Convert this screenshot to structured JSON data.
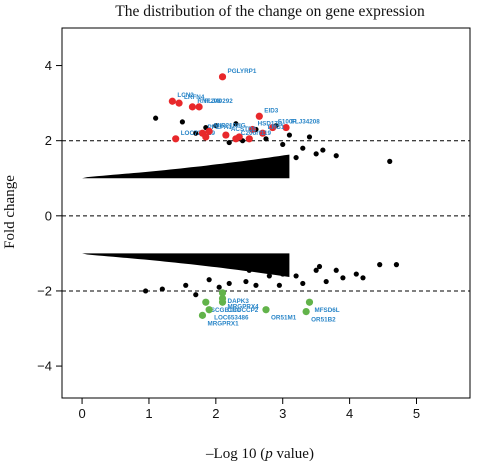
{
  "chart_data": {
    "type": "scatter",
    "title": "The distribution of the change on gene expression",
    "xlabel_prefix": "–Log 10 (",
    "xlabel_italic": "p",
    "xlabel_suffix": " value)",
    "ylabel": "Fold change",
    "xlim": [
      -0.3,
      5.8
    ],
    "ylim": [
      -4.85,
      5.0
    ],
    "x_ticks": [
      0,
      1,
      2,
      3,
      4,
      5
    ],
    "y_ticks": [
      -4,
      -2,
      0,
      2,
      4
    ],
    "reference_lines": [
      2,
      0,
      -2
    ],
    "colors": {
      "background": "#000000",
      "up": "#e8282b",
      "down": "#62b34a",
      "label": "#2a86c8"
    },
    "background_points": [
      [
        1.85,
        2.35
      ],
      [
        2.0,
        2.4
      ],
      [
        2.3,
        2.45
      ],
      [
        2.6,
        2.3
      ],
      [
        2.9,
        2.4
      ],
      [
        3.1,
        2.15
      ],
      [
        3.4,
        2.1
      ],
      [
        3.6,
        1.75
      ],
      [
        3.8,
        1.6
      ],
      [
        4.6,
        1.45
      ],
      [
        3.3,
        1.8
      ],
      [
        3.0,
        1.9
      ],
      [
        2.75,
        2.05
      ],
      [
        1.1,
        2.6
      ],
      [
        1.5,
        2.5
      ],
      [
        1.7,
        2.2
      ],
      [
        2.4,
        2.0
      ],
      [
        3.2,
        1.55
      ],
      [
        2.2,
        1.95
      ],
      [
        3.5,
        1.65
      ],
      [
        2.5,
        -1.45
      ],
      [
        2.8,
        -1.6
      ],
      [
        3.0,
        -1.55
      ],
      [
        3.2,
        -1.6
      ],
      [
        3.5,
        -1.45
      ],
      [
        3.8,
        -1.45
      ],
      [
        4.1,
        -1.55
      ],
      [
        4.45,
        -1.3
      ],
      [
        4.7,
        -1.3
      ],
      [
        3.9,
        -1.65
      ],
      [
        3.65,
        -1.75
      ],
      [
        1.9,
        -1.7
      ],
      [
        2.2,
        -1.8
      ],
      [
        1.2,
        -1.95
      ],
      [
        1.55,
        -1.85
      ],
      [
        2.6,
        -1.85
      ],
      [
        3.3,
        -1.8
      ],
      [
        1.7,
        -2.1
      ],
      [
        2.95,
        -1.85
      ],
      [
        3.55,
        -1.35
      ],
      [
        4.2,
        -1.65
      ],
      [
        0.95,
        -2.0
      ],
      [
        2.05,
        -1.9
      ],
      [
        2.45,
        -1.75
      ]
    ],
    "up_genes": [
      {
        "name": "PGLYRP1",
        "x": 2.1,
        "y": 3.7
      },
      {
        "name": "LCN2",
        "x": 1.35,
        "y": 3.05
      },
      {
        "name": "LRFN4",
        "x": 1.45,
        "y": 3.0
      },
      {
        "name": "RNF208",
        "x": 1.65,
        "y": 2.9
      },
      {
        "name": "FLJ40292",
        "x": 1.75,
        "y": 2.9
      },
      {
        "name": "EID3",
        "x": 2.65,
        "y": 2.65
      },
      {
        "name": "FLJ34208",
        "x": 3.05,
        "y": 2.35
      },
      {
        "name": "S100P",
        "x": 2.85,
        "y": 2.35
      },
      {
        "name": "HSD17B",
        "x": 2.55,
        "y": 2.3
      },
      {
        "name": "LRG1",
        "x": 2.7,
        "y": 2.2
      },
      {
        "name": "LOC728619",
        "x": 1.4,
        "y": 2.05
      },
      {
        "name": "PPEPA1",
        "x": 1.8,
        "y": 2.2
      },
      {
        "name": "MIR210HG",
        "x": 1.9,
        "y": 2.25
      },
      {
        "name": "ACSTD2",
        "x": 2.15,
        "y": 2.15
      },
      {
        "name": "C20orf119",
        "x": 2.3,
        "y": 2.05
      },
      {
        "name": "",
        "x": 1.85,
        "y": 2.1
      },
      {
        "name": "",
        "x": 2.35,
        "y": 2.1
      },
      {
        "name": "",
        "x": 2.5,
        "y": 2.05
      }
    ],
    "down_genes": [
      {
        "name": "DAPK3",
        "x": 2.1,
        "y": -2.05
      },
      {
        "name": "MRGPRX4",
        "x": 2.1,
        "y": -2.2
      },
      {
        "name": "CROCCP2",
        "x": 2.1,
        "y": -2.3
      },
      {
        "name": "SCGB1C1",
        "x": 1.85,
        "y": -2.3
      },
      {
        "name": "LOC653486",
        "x": 1.9,
        "y": -2.5
      },
      {
        "name": "MRGPRX1",
        "x": 1.8,
        "y": -2.65
      },
      {
        "name": "OR51M1",
        "x": 2.75,
        "y": -2.5
      },
      {
        "name": "MFSD6L",
        "x": 3.4,
        "y": -2.3
      },
      {
        "name": "OR51B2",
        "x": 3.35,
        "y": -2.55
      }
    ],
    "label_positions_note": ""
  }
}
